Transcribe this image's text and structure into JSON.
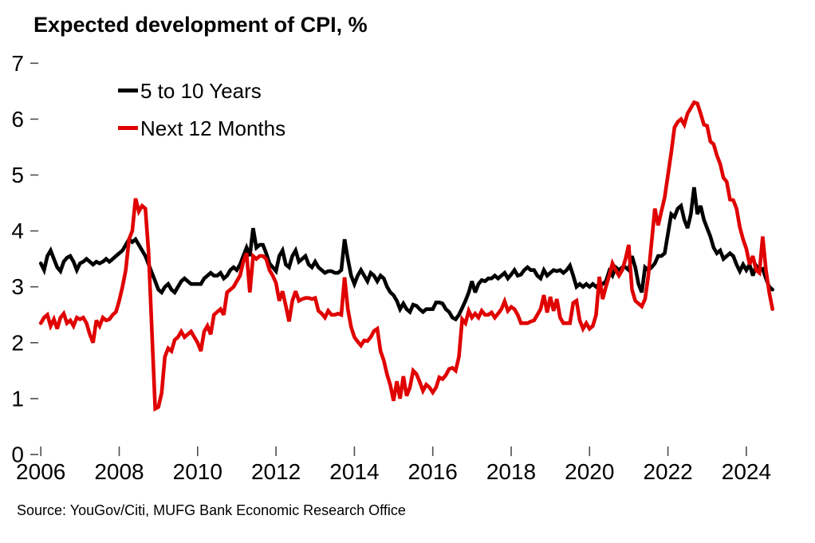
{
  "title": "Expected development of CPI, %",
  "source": "Source: YouGov/Citi, MUFG Bank Economic Research Office",
  "colors": {
    "black_series": "#000000",
    "red_series": "#e00000",
    "background": "#ffffff",
    "tick": "#4d4d4d"
  },
  "legend": {
    "items": [
      {
        "label": "5 to 10 Years",
        "color": "#000000"
      },
      {
        "label": "Next 12 Months",
        "color": "#e00000"
      }
    ]
  },
  "chart_data": {
    "type": "line",
    "title": "Expected development of CPI, %",
    "xlabel": "",
    "ylabel": "",
    "ylim": [
      0,
      7
    ],
    "xlim": [
      2006,
      2025.2
    ],
    "grid": false,
    "legend_position": "top-left",
    "x_axis_ticks": [
      2006,
      2008,
      2010,
      2012,
      2014,
      2016,
      2018,
      2020,
      2022,
      2024
    ],
    "y_axis_ticks": [
      0,
      1,
      2,
      3,
      4,
      5,
      6,
      7
    ],
    "x_start_year": 2006.0,
    "x_step_years": 0.083333,
    "series": [
      {
        "name": "5 to 10 Years",
        "color": "#000000",
        "values": [
          3.42,
          3.3,
          3.55,
          3.65,
          3.5,
          3.35,
          3.28,
          3.45,
          3.52,
          3.55,
          3.45,
          3.3,
          3.42,
          3.45,
          3.5,
          3.45,
          3.4,
          3.45,
          3.42,
          3.45,
          3.5,
          3.45,
          3.5,
          3.55,
          3.6,
          3.65,
          3.75,
          3.85,
          3.8,
          3.85,
          3.75,
          3.65,
          3.55,
          3.4,
          3.25,
          3.1,
          2.95,
          2.9,
          3.0,
          3.05,
          2.95,
          2.9,
          3.0,
          3.1,
          3.15,
          3.1,
          3.05,
          3.05,
          3.05,
          3.05,
          3.15,
          3.2,
          3.25,
          3.2,
          3.2,
          3.25,
          3.15,
          3.2,
          3.3,
          3.35,
          3.3,
          3.4,
          3.55,
          3.7,
          3.55,
          4.05,
          3.7,
          3.75,
          3.75,
          3.6,
          3.42,
          3.35,
          3.28,
          3.55,
          3.65,
          3.4,
          3.35,
          3.55,
          3.65,
          3.45,
          3.5,
          3.55,
          3.4,
          3.35,
          3.45,
          3.35,
          3.3,
          3.25,
          3.28,
          3.28,
          3.25,
          3.25,
          3.3,
          3.85,
          3.5,
          3.2,
          3.05,
          3.2,
          3.3,
          3.2,
          3.1,
          3.25,
          3.2,
          3.1,
          3.2,
          3.15,
          3.0,
          2.9,
          2.85,
          2.75,
          2.6,
          2.7,
          2.6,
          2.55,
          2.68,
          2.66,
          2.6,
          2.55,
          2.6,
          2.6,
          2.6,
          2.72,
          2.72,
          2.7,
          2.6,
          2.55,
          2.45,
          2.42,
          2.5,
          2.62,
          2.75,
          2.9,
          3.1,
          2.9,
          3.05,
          3.12,
          3.1,
          3.15,
          3.15,
          3.2,
          3.15,
          3.2,
          3.25,
          3.15,
          3.22,
          3.3,
          3.2,
          3.22,
          3.3,
          3.35,
          3.3,
          3.3,
          3.2,
          3.15,
          3.3,
          3.2,
          3.25,
          3.3,
          3.28,
          3.3,
          3.25,
          3.3,
          3.38,
          3.2,
          3.0,
          3.05,
          3.0,
          3.05,
          3.0,
          3.05,
          3.0,
          3.05,
          3.05,
          3.1,
          3.28,
          3.2,
          3.35,
          3.3,
          3.35,
          3.35,
          3.3,
          3.55,
          3.35,
          3.05,
          2.9,
          3.35,
          3.3,
          3.35,
          3.42,
          3.55,
          3.55,
          3.6,
          3.95,
          4.3,
          4.25,
          4.4,
          4.45,
          4.2,
          4.05,
          4.3,
          4.78,
          4.3,
          4.45,
          4.2,
          4.05,
          3.9,
          3.7,
          3.6,
          3.65,
          3.5,
          3.55,
          3.6,
          3.55,
          3.4,
          3.28,
          3.4,
          3.3,
          3.4,
          3.2,
          3.38,
          3.3,
          3.32,
          3.15,
          3.0,
          2.95
        ]
      },
      {
        "name": "Next 12 Months",
        "color": "#e00000",
        "values": [
          2.35,
          2.45,
          2.5,
          2.3,
          2.42,
          2.25,
          2.45,
          2.52,
          2.35,
          2.4,
          2.3,
          2.45,
          2.42,
          2.45,
          2.35,
          2.15,
          2.0,
          2.4,
          2.3,
          2.45,
          2.4,
          2.42,
          2.5,
          2.55,
          2.75,
          3.0,
          3.3,
          3.85,
          4.0,
          4.58,
          4.35,
          4.45,
          4.4,
          3.6,
          2.2,
          0.82,
          0.85,
          1.1,
          1.75,
          1.9,
          1.85,
          2.05,
          2.1,
          2.2,
          2.1,
          2.15,
          2.2,
          2.1,
          2.0,
          1.85,
          2.2,
          2.3,
          2.15,
          2.5,
          2.55,
          2.6,
          2.5,
          2.9,
          2.95,
          3.0,
          3.1,
          3.2,
          3.45,
          3.6,
          2.9,
          3.55,
          3.5,
          3.55,
          3.55,
          3.5,
          3.3,
          3.2,
          3.07,
          2.75,
          2.92,
          2.66,
          2.38,
          2.75,
          2.92,
          2.75,
          2.78,
          2.8,
          2.8,
          2.78,
          2.8,
          2.57,
          2.52,
          2.45,
          2.57,
          2.5,
          2.5,
          2.52,
          2.5,
          3.17,
          2.6,
          2.28,
          2.1,
          2.02,
          1.95,
          2.04,
          2.03,
          2.1,
          2.21,
          2.25,
          1.85,
          1.68,
          1.43,
          1.24,
          0.96,
          1.31,
          1.0,
          1.4,
          1.05,
          1.2,
          1.5,
          1.44,
          1.3,
          1.14,
          1.25,
          1.2,
          1.11,
          1.2,
          1.38,
          1.35,
          1.42,
          1.53,
          1.55,
          1.5,
          1.75,
          2.42,
          2.35,
          2.57,
          2.45,
          2.52,
          2.45,
          2.57,
          2.5,
          2.5,
          2.54,
          2.45,
          2.52,
          2.6,
          2.74,
          2.57,
          2.64,
          2.6,
          2.5,
          2.35,
          2.35,
          2.35,
          2.38,
          2.4,
          2.5,
          2.6,
          2.85,
          2.54,
          2.82,
          2.57,
          2.78,
          2.45,
          2.35,
          2.35,
          2.35,
          2.71,
          2.75,
          2.4,
          2.25,
          2.35,
          2.25,
          2.3,
          2.5,
          3.18,
          2.78,
          3.0,
          3.2,
          3.42,
          3.3,
          3.2,
          3.3,
          3.5,
          3.75,
          2.95,
          2.75,
          2.7,
          2.65,
          2.78,
          3.2,
          3.8,
          4.4,
          4.1,
          4.35,
          4.6,
          5.0,
          5.4,
          5.85,
          5.95,
          6.0,
          5.9,
          6.1,
          6.2,
          6.3,
          6.28,
          6.1,
          5.9,
          5.88,
          5.6,
          5.55,
          5.35,
          5.2,
          4.95,
          4.88,
          4.56,
          4.55,
          4.4,
          4.07,
          3.85,
          3.68,
          3.4,
          3.55,
          3.3,
          3.25,
          3.9,
          3.3,
          2.9,
          2.6
        ]
      }
    ]
  }
}
